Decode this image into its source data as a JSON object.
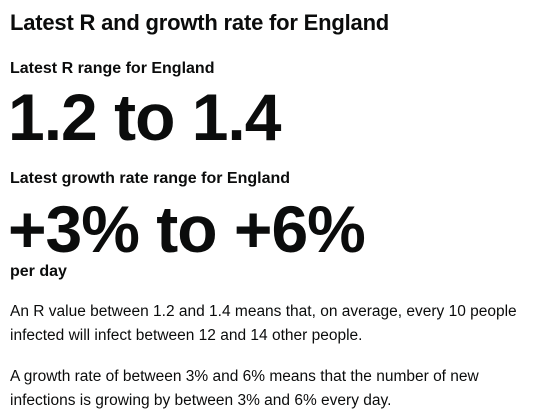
{
  "heading": "Latest R and growth rate for England",
  "r_section": {
    "label": "Latest R range for England",
    "value": "1.2 to 1.4"
  },
  "growth_section": {
    "label": "Latest growth rate range for England",
    "value": "+3% to +6%",
    "unit": "per day"
  },
  "explanations": {
    "r_text": "An R value between 1.2 and 1.4 means that, on average, every 10 people infected will infect between 12 and 14 other people.",
    "growth_text": "A growth rate of between 3% and 6% means that the number of new infections is growing by between 3% and 6% every day."
  }
}
